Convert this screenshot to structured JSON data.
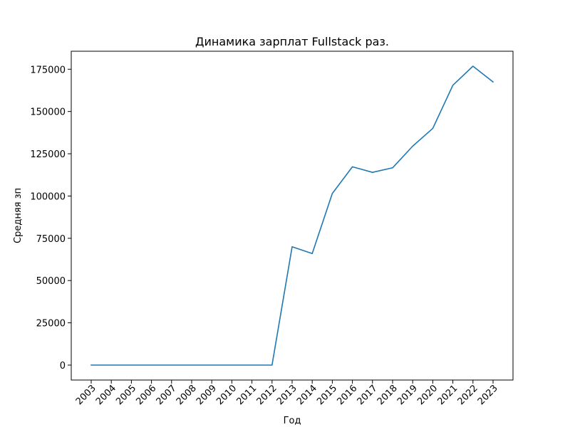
{
  "chart_data": {
    "type": "line",
    "title": "Динамика зарплат Fullstack раз.",
    "xlabel": "Год",
    "ylabel": "Средняя зп",
    "categories": [
      "2003",
      "2004",
      "2005",
      "2006",
      "2007",
      "2008",
      "2009",
      "2010",
      "2011",
      "2012",
      "2013",
      "2014",
      "2015",
      "2016",
      "2017",
      "2018",
      "2019",
      "2020",
      "2021",
      "2022",
      "2023"
    ],
    "series": [
      {
        "values": [
          0,
          0,
          0,
          0,
          0,
          0,
          0,
          0,
          0,
          0,
          70000,
          66000,
          101500,
          117300,
          114000,
          116700,
          129500,
          140000,
          165500,
          176800,
          167500
        ],
        "color": "#1f77b4"
      }
    ],
    "yticks": [
      0,
      25000,
      50000,
      75000,
      100000,
      125000,
      150000,
      175000
    ],
    "ylim": [
      -8840,
      185640
    ],
    "grid": false,
    "legend": "none"
  }
}
